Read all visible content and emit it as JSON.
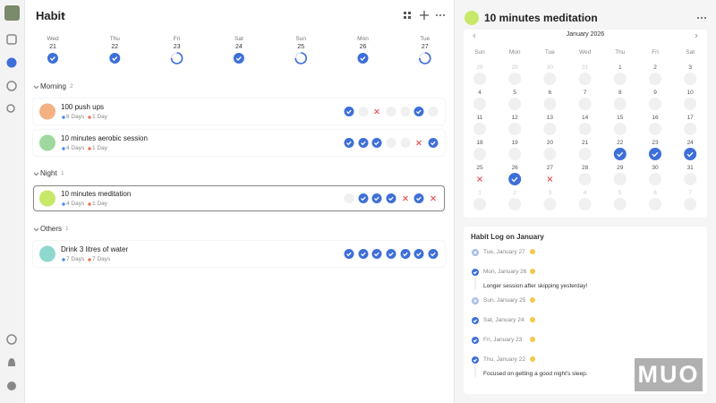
{
  "header": {
    "title": "Habit"
  },
  "week": [
    {
      "day": "Wed",
      "date": "21",
      "status": "done"
    },
    {
      "day": "Thu",
      "date": "22",
      "status": "done"
    },
    {
      "day": "Fri",
      "date": "23",
      "status": "partial"
    },
    {
      "day": "Sat",
      "date": "24",
      "status": "done"
    },
    {
      "day": "Sun",
      "date": "25",
      "status": "partial"
    },
    {
      "day": "Mon",
      "date": "26",
      "status": "done"
    },
    {
      "day": "Tue",
      "date": "27",
      "status": "partial"
    }
  ],
  "groups": [
    {
      "name": "Morning",
      "count": "2",
      "habits": [
        {
          "name": "100 push ups",
          "total": "8 Days",
          "streak": "1 Day",
          "color": "#f4b183",
          "days": [
            "done",
            "empty",
            "missed",
            "empty",
            "empty",
            "done",
            "empty"
          ]
        },
        {
          "name": "10 minutes aerobic session",
          "total": "4 Days",
          "streak": "1 Day",
          "color": "#9fd89f",
          "days": [
            "done",
            "done",
            "done",
            "empty",
            "empty",
            "missed",
            "done"
          ]
        }
      ]
    },
    {
      "name": "Night",
      "count": "1",
      "habits": [
        {
          "name": "10 minutes meditation",
          "total": "4 Days",
          "streak": "1 Day",
          "color": "#c8e86a",
          "selected": true,
          "days": [
            "empty",
            "done",
            "done",
            "done",
            "missed",
            "done",
            "missed"
          ]
        }
      ]
    },
    {
      "name": "Others",
      "count": "1",
      "habits": [
        {
          "name": "Drink 3 litres of water",
          "total": "7 Days",
          "streak": "7 Days",
          "color": "#8fd8d0",
          "days": [
            "done",
            "done",
            "done",
            "done",
            "done",
            "done",
            "done"
          ]
        }
      ]
    }
  ],
  "detail": {
    "title": "10 minutes meditation",
    "month": "January 2026",
    "weekdays": [
      "Sun",
      "Mon",
      "Tue",
      "Wed",
      "Thu",
      "Fri",
      "Sat"
    ],
    "weeks": [
      [
        "28",
        "29",
        "30",
        "31",
        "1",
        "2",
        "3"
      ],
      [
        "4",
        "5",
        "6",
        "7",
        "8",
        "9",
        "10"
      ],
      [
        "11",
        "12",
        "13",
        "14",
        "15",
        "16",
        "17"
      ],
      [
        "18",
        "19",
        "20",
        "21",
        "22",
        "23",
        "24"
      ],
      [
        "25",
        "26",
        "27",
        "28",
        "29",
        "30",
        "31"
      ],
      [
        "1",
        "2",
        "3",
        "4",
        "5",
        "6",
        "7"
      ]
    ],
    "marks": [
      [
        "",
        "",
        "",
        "",
        "",
        "",
        ""
      ],
      [
        "",
        "",
        "",
        "",
        "",
        "",
        ""
      ],
      [
        "",
        "",
        "",
        "",
        "",
        "",
        ""
      ],
      [
        "",
        "",
        "",
        "",
        "done",
        "done",
        "done"
      ],
      [
        "missed",
        "done",
        "missed",
        "",
        "",
        "",
        ""
      ],
      [
        "",
        "",
        "",
        "",
        "",
        "",
        ""
      ]
    ],
    "log_title": "Habit Log on January",
    "log": [
      {
        "date": "Tue, January 27",
        "status": "skipped"
      },
      {
        "date": "Mon, January 26",
        "status": "done",
        "note": "Longer session after skipping yesterday!"
      },
      {
        "date": "Sun, January 25",
        "status": "skipped"
      },
      {
        "date": "Sat, January 24",
        "status": "done"
      },
      {
        "date": "Fri, January 23",
        "status": "done"
      },
      {
        "date": "Thu, January 22",
        "status": "done",
        "note": "Focused on getting a good night's sleep."
      }
    ]
  },
  "watermark": "MUO"
}
